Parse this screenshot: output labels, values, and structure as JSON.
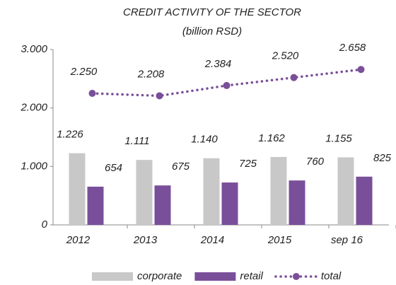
{
  "chart_data": {
    "type": "bar",
    "title": "CREDIT ACTIVITY OF THE SECTOR",
    "subtitle": "(billion RSD)",
    "categories": [
      "2012",
      "2013",
      "2014",
      "2015",
      "sep 16"
    ],
    "series": [
      {
        "name": "corporate",
        "color": "#c8c8c8",
        "values": [
          1226,
          1111,
          1140,
          1162,
          1155
        ],
        "value_labels": [
          "1.226",
          "1.111",
          "1.140",
          "1.162",
          "1.155"
        ]
      },
      {
        "name": "retail",
        "color": "#7a4f9a",
        "values": [
          654,
          675,
          725,
          760,
          825
        ]
      },
      {
        "name": "total",
        "type": "line",
        "color": "#7a4f9a",
        "values": [
          2250,
          2208,
          2384,
          2520,
          2658
        ],
        "value_labels": [
          "2.250",
          "2.208",
          "2.384",
          "2.520",
          "2.658"
        ]
      }
    ],
    "ylim": [
      0,
      3000
    ],
    "yticks": [
      0,
      {
        "value": 1000,
        "label": "1.000"
      },
      {
        "value": 2000,
        "label": "2.000"
      },
      {
        "value": 3000,
        "label": "3.000"
      }
    ],
    "legend": "bottom"
  }
}
